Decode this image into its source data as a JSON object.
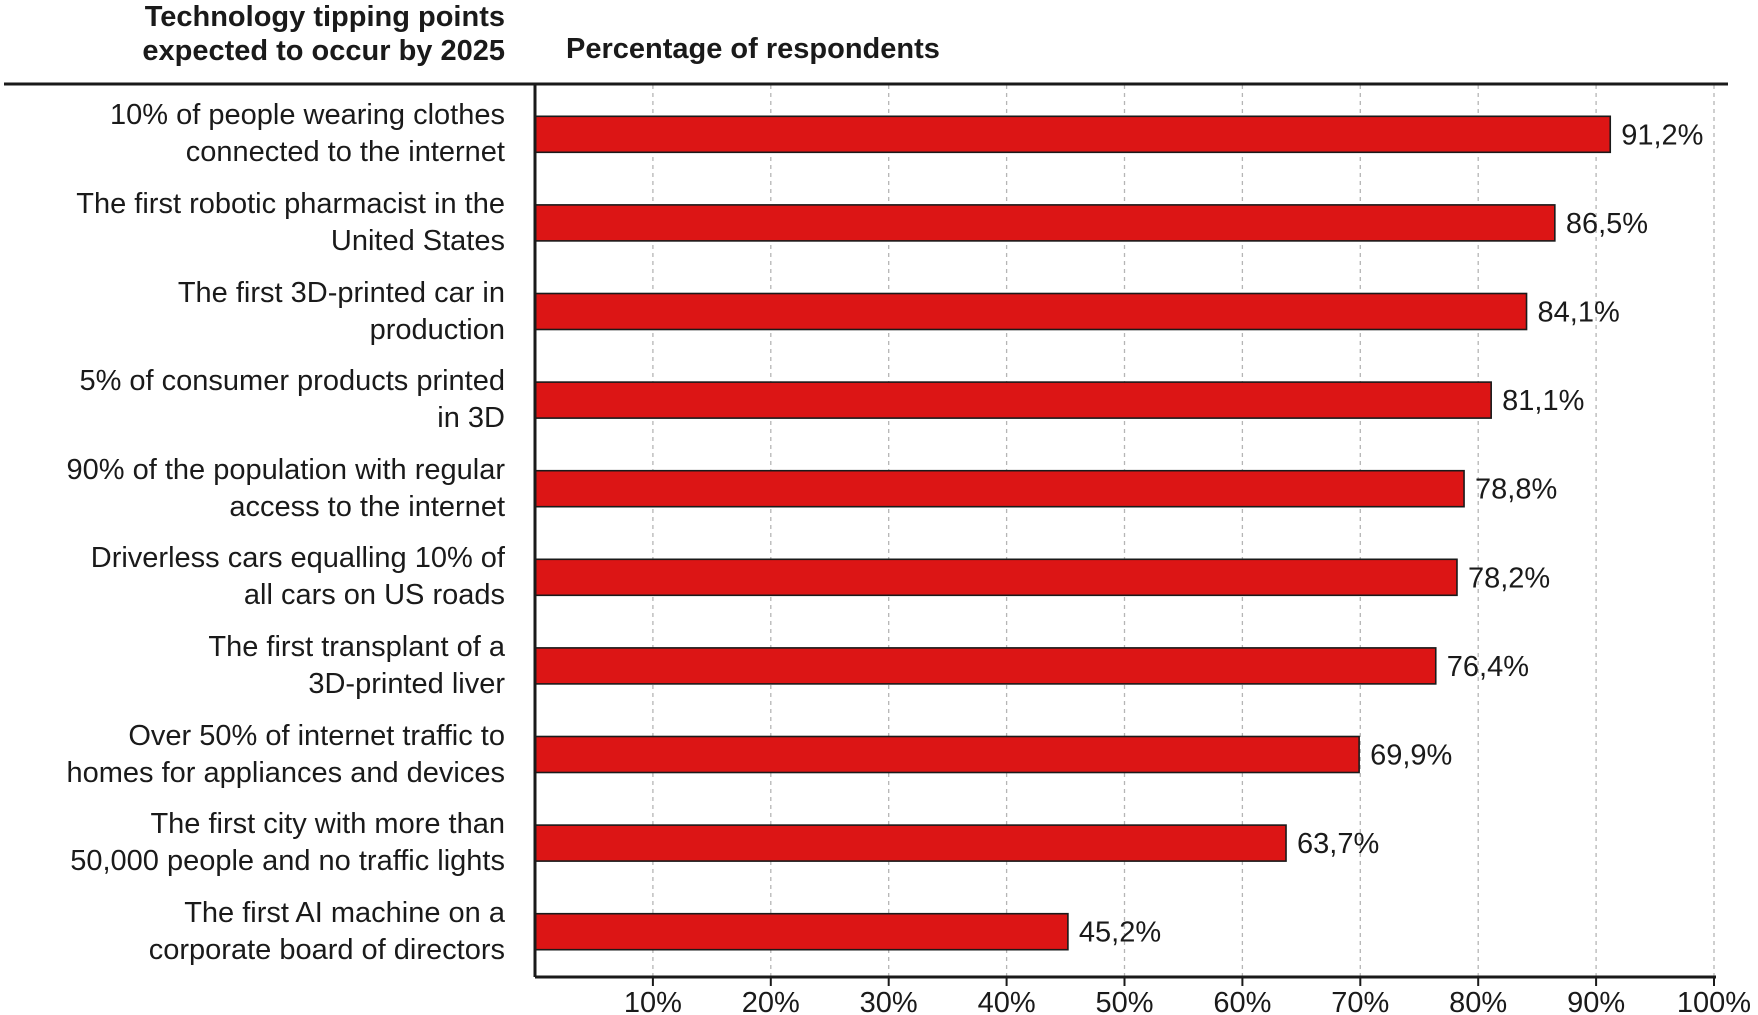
{
  "header": {
    "left_line1": "Technology tipping points",
    "left_line2": "expected to occur by 2025",
    "right": "Percentage of respondents"
  },
  "colors": {
    "bar": "#dc1515",
    "bar_stroke": "#1a1a1a",
    "grid": "#b5b5b5",
    "axis": "#1a1a1a"
  },
  "chart_data": {
    "type": "bar",
    "orientation": "horizontal",
    "title": "Technology tipping points expected to occur by 2025",
    "xlabel": "Percentage of respondents",
    "xlim": [
      0,
      100
    ],
    "grid": true,
    "categories": [
      [
        "10% of people wearing clothes",
        "connected to the internet"
      ],
      [
        "The first robotic pharmacist in the",
        "United States"
      ],
      [
        "The first 3D-printed car in",
        "production"
      ],
      [
        "5% of consumer products printed",
        "in 3D"
      ],
      [
        "90% of the population with regular",
        "access to the internet"
      ],
      [
        "Driverless cars equalling 10% of",
        "all cars on US roads"
      ],
      [
        "The first transplant of a",
        "3D-printed liver"
      ],
      [
        "Over 50% of internet traffic to",
        "homes for appliances and devices"
      ],
      [
        "The first city with more than",
        "50,000 people and no traffic lights"
      ],
      [
        "The first AI machine on a",
        "corporate board of directors"
      ]
    ],
    "values": [
      91.2,
      86.5,
      84.1,
      81.1,
      78.8,
      78.2,
      76.4,
      69.9,
      63.7,
      45.2
    ],
    "value_labels": [
      "91,2%",
      "86,5%",
      "84,1%",
      "81,1%",
      "78,8%",
      "78,2%",
      "76,4%",
      "69,9%",
      "63,7%",
      "45,2%"
    ],
    "ticks": [
      10,
      20,
      30,
      40,
      50,
      60,
      70,
      80,
      90,
      100
    ],
    "tick_labels": [
      "10%",
      "20%",
      "30%",
      "40%",
      "50%",
      "60%",
      "70%",
      "80%",
      "90%",
      "100%"
    ]
  }
}
